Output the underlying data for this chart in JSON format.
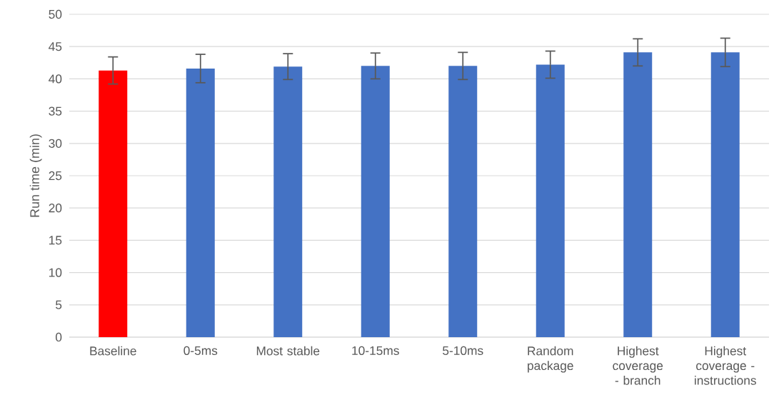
{
  "chart_data": {
    "type": "bar",
    "ylabel": "Run time (min)",
    "categories": [
      "Baseline",
      "0-5ms",
      "Most stable",
      "10-15ms",
      "5-10ms",
      "Random package",
      "Highest coverage - branch",
      "Highest coverage - instructions"
    ],
    "values": [
      41.3,
      41.6,
      41.9,
      42.0,
      42.0,
      42.2,
      44.1,
      44.1
    ],
    "errors": [
      2.1,
      2.2,
      2.0,
      2.0,
      2.1,
      2.1,
      2.1,
      2.2
    ],
    "colors": [
      "#ff0000",
      "#4472c4",
      "#4472c4",
      "#4472c4",
      "#4472c4",
      "#4472c4",
      "#4472c4",
      "#4472c4"
    ],
    "ylim": [
      0,
      50
    ],
    "yticks": [
      0,
      5,
      10,
      15,
      20,
      25,
      30,
      35,
      40,
      45,
      50
    ],
    "grid": "y"
  }
}
